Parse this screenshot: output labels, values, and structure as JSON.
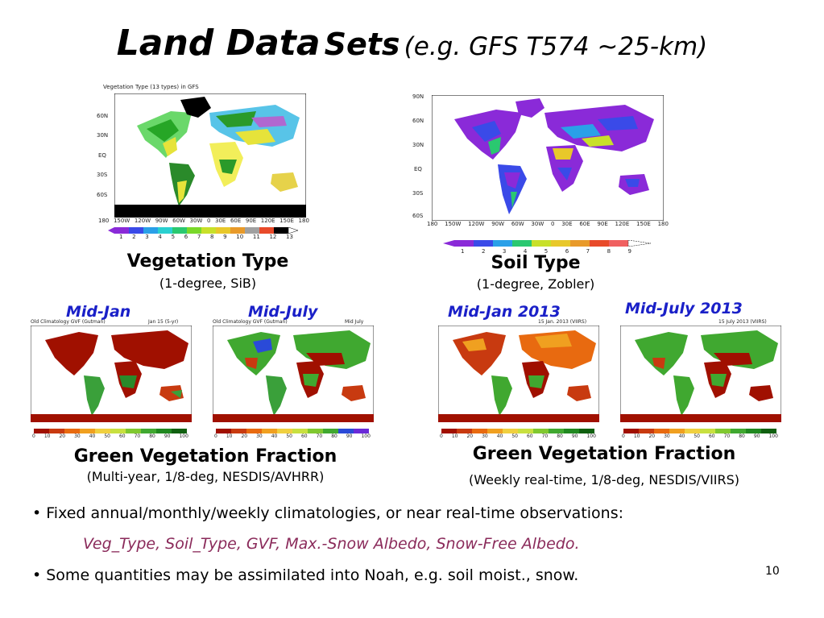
{
  "slide": {
    "title_bold": "Land Data",
    "title_sets": "Sets",
    "title_paren": "(e.g. GFS T574 ~25-km)",
    "page_number": "10"
  },
  "veg_type": {
    "map_title": "Vegetation Type (13 types) in GFS",
    "label": "Vegetation Type",
    "sub": "(1-degree, SiB)",
    "lat_ticks": [
      "60N",
      "30N",
      "EQ",
      "30S",
      "60S"
    ],
    "lon_ticks": [
      "180",
      "150W",
      "120W",
      "90W",
      "60W",
      "30W",
      "0",
      "30E",
      "60E",
      "90E",
      "120E",
      "150E",
      "180"
    ],
    "colorbar": [
      "1",
      "2",
      "3",
      "4",
      "5",
      "6",
      "7",
      "8",
      "9",
      "10",
      "11",
      "12",
      "13"
    ]
  },
  "soil_type": {
    "label": "Soil Type",
    "sub": "(1-degree, Zobler)",
    "lat_ticks": [
      "90N",
      "60N",
      "30N",
      "EQ",
      "30S",
      "60S"
    ],
    "lon_ticks": [
      "180",
      "150W",
      "120W",
      "90W",
      "60W",
      "30W",
      "0",
      "30E",
      "60E",
      "90E",
      "120E",
      "150E",
      "180"
    ],
    "colorbar": [
      "1",
      "2",
      "3",
      "4",
      "5",
      "6",
      "7",
      "8",
      "9"
    ]
  },
  "gvf_clim": {
    "jan_label": "Mid-Jan",
    "jul_label": "Mid-July",
    "jan_map_title": "Old Climatology GVF (Gutman)",
    "jan_map_date": "Jan 15 (5-yr)",
    "jul_map_title": "Old Climatology GVF (Gutman)",
    "jul_map_date": "Mid July",
    "label": "Green Vegetation Fraction",
    "sub": "(Multi-year, 1/8-deg, NESDIS/AVHRR)",
    "colorbar": [
      "0",
      "10",
      "20",
      "30",
      "40",
      "50",
      "60",
      "70",
      "80",
      "90",
      "100"
    ]
  },
  "gvf_rt": {
    "jan_label": "Mid-Jan 2013",
    "jul_label": "Mid-July 2013",
    "jan_map_date": "15 Jan. 2013 (VIIRS)",
    "jul_map_date": "15 July 2013 (VIIRS)",
    "label": "Green Vegetation Fraction",
    "sub": "(Weekly real-time, 1/8-deg, NESDIS/VIIRS)",
    "colorbar": [
      "0",
      "10",
      "20",
      "30",
      "40",
      "50",
      "60",
      "70",
      "80",
      "90",
      "100"
    ]
  },
  "bullets": {
    "b1": "• Fixed annual/monthly/weekly climatologies, or near real-time observations:",
    "b1_list": "Veg_Type, Soil_Type, GVF, Max.-Snow Albedo, Snow-Free Albedo.",
    "b2": "• Some quantities may be assimilated into Noah, e.g. soil moist., snow."
  },
  "colors": {
    "title_blue": "#1a20c8",
    "list_purple": "#8a2a5a",
    "gvf_red": "#a01000",
    "gvf_green": "#2aa02a"
  }
}
